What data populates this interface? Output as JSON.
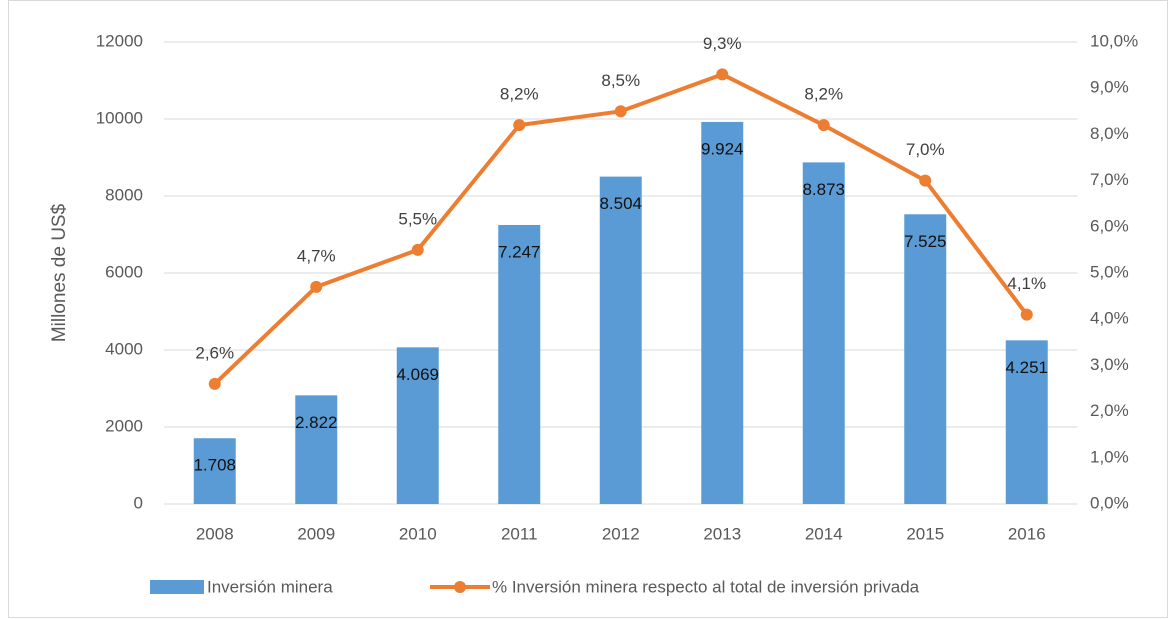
{
  "chart_data": {
    "type": "bar+line",
    "categories": [
      "2008",
      "2009",
      "2010",
      "2011",
      "2012",
      "2013",
      "2014",
      "2015",
      "2016"
    ],
    "y_label": "Millones de US$",
    "ylim": [
      0,
      12000
    ],
    "yticks": [
      0,
      2000,
      4000,
      6000,
      8000,
      10000,
      12000
    ],
    "y2lim": [
      0,
      10
    ],
    "y2ticks": [
      {
        "value": 0,
        "label": "0,0%"
      },
      {
        "value": 1,
        "label": "1,0%"
      },
      {
        "value": 2,
        "label": "2,0%"
      },
      {
        "value": 3,
        "label": "3,0%"
      },
      {
        "value": 4,
        "label": "4,0%"
      },
      {
        "value": 5,
        "label": "5,0%"
      },
      {
        "value": 6,
        "label": "6,0%"
      },
      {
        "value": 7,
        "label": "7,0%"
      },
      {
        "value": 8,
        "label": "8,0%"
      },
      {
        "value": 9,
        "label": "9,0%"
      },
      {
        "value": 10,
        "label": "10,0%"
      }
    ],
    "grid": true,
    "legend": "bottom",
    "series": [
      {
        "name": "Inversión minera",
        "type": "bar",
        "color": "#5b9bd5",
        "values": [
          1708,
          2822,
          4069,
          7247,
          8504,
          9924,
          8873,
          7525,
          4251
        ],
        "value_labels": [
          "1.708",
          "2.822",
          "4.069",
          "7.247",
          "8.504",
          "9.924",
          "8.873",
          "7.525",
          "4.251"
        ]
      },
      {
        "name": "% Inversión minera respecto al total de inversión privada",
        "type": "line",
        "axis": "y2",
        "color": "#ed7d31",
        "values": [
          2.6,
          4.7,
          5.5,
          8.2,
          8.5,
          9.3,
          8.2,
          7.0,
          4.1
        ],
        "value_labels": [
          "2,6%",
          "4,7%",
          "5,5%",
          "8,2%",
          "8,5%",
          "9,3%",
          "8,2%",
          "7,0%",
          "4,1%"
        ]
      }
    ]
  }
}
